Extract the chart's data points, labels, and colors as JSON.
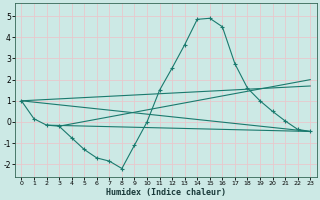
{
  "xlabel": "Humidex (Indice chaleur)",
  "background_color": "#cce9e5",
  "grid_color": "#b0d8d4",
  "line_color": "#1a7a6e",
  "xlim": [
    -0.5,
    23.5
  ],
  "ylim": [
    -2.6,
    5.6
  ],
  "xticks": [
    0,
    1,
    2,
    3,
    4,
    5,
    6,
    7,
    8,
    9,
    10,
    11,
    12,
    13,
    14,
    15,
    16,
    17,
    18,
    19,
    20,
    21,
    22,
    23
  ],
  "yticks": [
    -2,
    -1,
    0,
    1,
    2,
    3,
    4,
    5
  ],
  "main_line": {
    "x": [
      0,
      1,
      2,
      3,
      4,
      5,
      6,
      7,
      8,
      9,
      10,
      11,
      12,
      13,
      14,
      15,
      16,
      17,
      18,
      19,
      20,
      21,
      22,
      23
    ],
    "y": [
      1.0,
      0.15,
      -0.15,
      -0.2,
      -0.75,
      -1.3,
      -1.7,
      -1.85,
      -2.2,
      -1.1,
      0.0,
      1.5,
      2.55,
      3.65,
      4.85,
      4.9,
      4.5,
      2.75,
      1.6,
      1.0,
      0.5,
      0.05,
      -0.35,
      -0.45
    ]
  },
  "trend_lines": [
    {
      "x": [
        0,
        23
      ],
      "y": [
        1.0,
        -0.45
      ]
    },
    {
      "x": [
        0,
        23
      ],
      "y": [
        1.0,
        1.7
      ]
    },
    {
      "x": [
        2,
        23
      ],
      "y": [
        -0.15,
        -0.45
      ]
    },
    {
      "x": [
        3,
        23
      ],
      "y": [
        -0.2,
        2.0
      ]
    }
  ]
}
